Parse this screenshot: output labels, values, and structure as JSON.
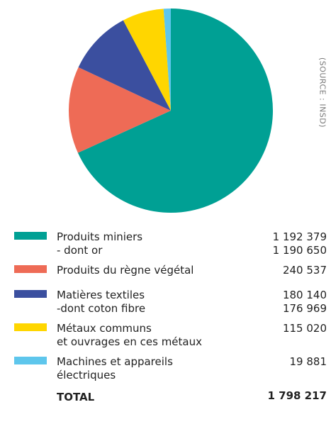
{
  "chart_data": {
    "type": "pie",
    "categories": [
      "Produits miniers",
      "Produits du règne végétal",
      "Matières textiles",
      "Métaux communs\net ouvrages en ces métaux",
      "Machines et appareils\nélectriques"
    ],
    "values": [
      1192379,
      240537,
      180140,
      115020,
      19881
    ],
    "value_labels": [
      "1 192 379",
      "240 537",
      "180 140",
      "115 020",
      "19 881"
    ],
    "colors": [
      "#00a094",
      "#ee6b56",
      "#3b4f9f",
      "#ffd600",
      "#5ec6ec"
    ],
    "sub_items": [
      {
        "label": "- dont or",
        "value_label": "1 190 650"
      },
      {
        "label": "-dont coton fibre",
        "value_label": "176 969"
      }
    ],
    "total_label": "TOTAL",
    "total_value_label": "1 798 217",
    "source": "(SOURCE : INSD)"
  }
}
